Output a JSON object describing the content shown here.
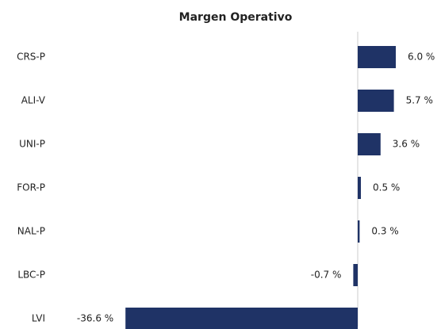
{
  "chart_data": {
    "type": "bar",
    "orientation": "horizontal",
    "title": "Margen Operativo",
    "categories": [
      "CRS-P",
      "ALI-V",
      "UNI-P",
      "FOR-P",
      "NAL-P",
      "LBC-P",
      "LVI"
    ],
    "values": [
      6.0,
      5.7,
      3.6,
      0.5,
      0.3,
      -0.7,
      -36.6
    ],
    "value_labels": [
      "6.0 %",
      "5.7 %",
      "3.6 %",
      "0.5 %",
      "0.3 %",
      "-0.7 %",
      "-36.6 %"
    ],
    "color": "#1f3366",
    "xlim": [
      -40,
      7
    ],
    "grid": false
  }
}
